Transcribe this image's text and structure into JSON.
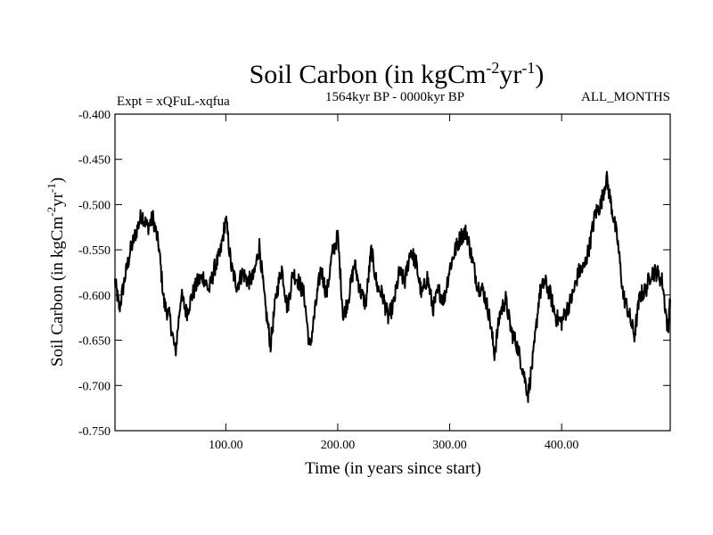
{
  "chart_data": {
    "type": "line",
    "title": {
      "main": "Soil Carbon (in kgCm",
      "sup1": "-2",
      "mid": "yr",
      "sup2": "-1",
      "end": ")"
    },
    "experiment_label": "Expt = xQFuL-xqfua",
    "period_label": "1564kyr BP - 0000kyr BP",
    "season_label": "ALL_MONTHS",
    "xlabel": "Time (in years since start)",
    "ylabel": {
      "main": "Soil Carbon (in kgCm",
      "sup1": "-2",
      "mid": "yr",
      "sup2": "-1",
      "end": ")"
    },
    "xlim": [
      1,
      497
    ],
    "ylim": [
      -0.75,
      -0.4
    ],
    "x_ticks": [
      100,
      200,
      300,
      400
    ],
    "x_tick_labels": [
      "100.00",
      "200.00",
      "300.00",
      "400.00"
    ],
    "y_ticks": [
      -0.4,
      -0.45,
      -0.5,
      -0.55,
      -0.6,
      -0.65,
      -0.7,
      -0.75
    ],
    "y_tick_labels": [
      "-0.400",
      "-0.450",
      "-0.500",
      "-0.550",
      "-0.600",
      "-0.650",
      "-0.700",
      "-0.750"
    ],
    "grid": false,
    "series": [
      {
        "name": "Soil Carbon",
        "color": "#000000",
        "x": [
          1,
          5,
          10,
          15,
          20,
          25,
          30,
          35,
          40,
          45,
          50,
          55,
          60,
          65,
          70,
          75,
          80,
          85,
          90,
          95,
          100,
          105,
          110,
          115,
          120,
          125,
          130,
          135,
          140,
          145,
          150,
          155,
          160,
          165,
          170,
          175,
          180,
          185,
          190,
          195,
          200,
          205,
          210,
          215,
          220,
          225,
          230,
          235,
          240,
          245,
          250,
          255,
          260,
          265,
          270,
          275,
          280,
          285,
          290,
          295,
          300,
          305,
          310,
          315,
          320,
          325,
          330,
          335,
          340,
          345,
          350,
          355,
          360,
          365,
          370,
          375,
          380,
          385,
          390,
          395,
          400,
          405,
          410,
          415,
          420,
          425,
          430,
          435,
          440,
          445,
          450,
          455,
          460,
          465,
          470,
          475,
          480,
          485,
          490,
          495,
          497
        ],
        "y": [
          -0.585,
          -0.615,
          -0.58,
          -0.55,
          -0.53,
          -0.51,
          -0.525,
          -0.515,
          -0.545,
          -0.61,
          -0.625,
          -0.665,
          -0.6,
          -0.62,
          -0.6,
          -0.585,
          -0.58,
          -0.595,
          -0.57,
          -0.555,
          -0.515,
          -0.57,
          -0.59,
          -0.575,
          -0.585,
          -0.58,
          -0.545,
          -0.61,
          -0.655,
          -0.6,
          -0.57,
          -0.615,
          -0.575,
          -0.585,
          -0.6,
          -0.66,
          -0.615,
          -0.57,
          -0.6,
          -0.555,
          -0.535,
          -0.625,
          -0.6,
          -0.565,
          -0.595,
          -0.61,
          -0.55,
          -0.59,
          -0.6,
          -0.625,
          -0.61,
          -0.575,
          -0.585,
          -0.55,
          -0.565,
          -0.6,
          -0.58,
          -0.615,
          -0.595,
          -0.605,
          -0.57,
          -0.55,
          -0.535,
          -0.53,
          -0.56,
          -0.59,
          -0.595,
          -0.62,
          -0.665,
          -0.62,
          -0.605,
          -0.64,
          -0.655,
          -0.68,
          -0.71,
          -0.665,
          -0.6,
          -0.585,
          -0.6,
          -0.625,
          -0.63,
          -0.615,
          -0.6,
          -0.575,
          -0.57,
          -0.545,
          -0.51,
          -0.5,
          -0.47,
          -0.505,
          -0.54,
          -0.6,
          -0.62,
          -0.645,
          -0.6,
          -0.595,
          -0.575,
          -0.575,
          -0.585,
          -0.64,
          -0.605
        ]
      }
    ]
  }
}
